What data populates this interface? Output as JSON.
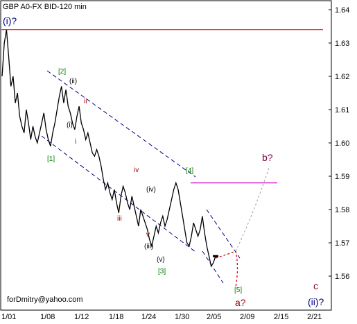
{
  "chart_data": {
    "type": "line",
    "title": "GBP A0-FX BID-120 min",
    "watermark": "forDmitry@yahoo.com",
    "y_range": [
      1.553,
      1.647
    ],
    "y_ticks": [
      "1.64",
      "1.63",
      "1.62",
      "1.61",
      "1.60",
      "1.59",
      "1.58",
      "1.57",
      "1.56"
    ],
    "x_ticks": [
      "1/01",
      "1/08",
      "1/12",
      "1/18",
      "1/24",
      "1/30",
      "2/05",
      "2/09",
      "2/15",
      "2/21"
    ],
    "series": [
      {
        "values": [
          1.62,
          1.63,
          1.634,
          1.626,
          1.617,
          1.62,
          1.612,
          1.615,
          1.608,
          1.605,
          1.603,
          1.61,
          1.606,
          1.601,
          1.605,
          1.602,
          1.6,
          1.603,
          1.606,
          1.609,
          1.604,
          1.601,
          1.599,
          1.603,
          1.606,
          1.61,
          1.614,
          1.617,
          1.612,
          1.616,
          1.611,
          1.609,
          1.606,
          1.604,
          1.608,
          1.611,
          1.606,
          1.604,
          1.601,
          1.603,
          1.6,
          1.597,
          1.596,
          1.598,
          1.596,
          1.593,
          1.589,
          1.586,
          1.588,
          1.585,
          1.583,
          1.586,
          1.582,
          1.579,
          1.584,
          1.587,
          1.585,
          1.582,
          1.58,
          1.584,
          1.581,
          1.578,
          1.575,
          1.58,
          1.578,
          1.576,
          1.574,
          1.571,
          1.569,
          1.572,
          1.575,
          1.573,
          1.576,
          1.578,
          1.575,
          1.577,
          1.58,
          1.583,
          1.586,
          1.588,
          1.586,
          1.582,
          1.578,
          1.574,
          1.57,
          1.569,
          1.572,
          1.576,
          1.574,
          1.572,
          1.574,
          1.578,
          1.573,
          1.569,
          1.566,
          1.563,
          1.564,
          1.566
        ]
      }
    ],
    "resistance_line": 1.634,
    "target_line": 1.588,
    "wave_labels": {
      "outer": [
        "(i)?",
        "(ii)?"
      ],
      "green": [
        "[1]",
        "[2]",
        "[3]",
        "[4]",
        "[5]"
      ],
      "black": [
        "(i)",
        "(ii)",
        "(iii)",
        "(iv)",
        "(v)"
      ],
      "red": [
        "i",
        "ii",
        "iii",
        "iv",
        "v"
      ],
      "red_target": "a?",
      "purple_target": "b?",
      "purple_c": "c"
    },
    "colors": {
      "price": "#000000",
      "channel": "#00008b",
      "resistance": "#e00000",
      "target": "#d000d0",
      "green_label": "#008000",
      "red_label": "#a00000",
      "navy_label": "#000080",
      "purple_label": "#800040",
      "forecast_a": "#e00000",
      "forecast_b": "#a0a0a0",
      "grid": "#d0d0d0"
    }
  }
}
